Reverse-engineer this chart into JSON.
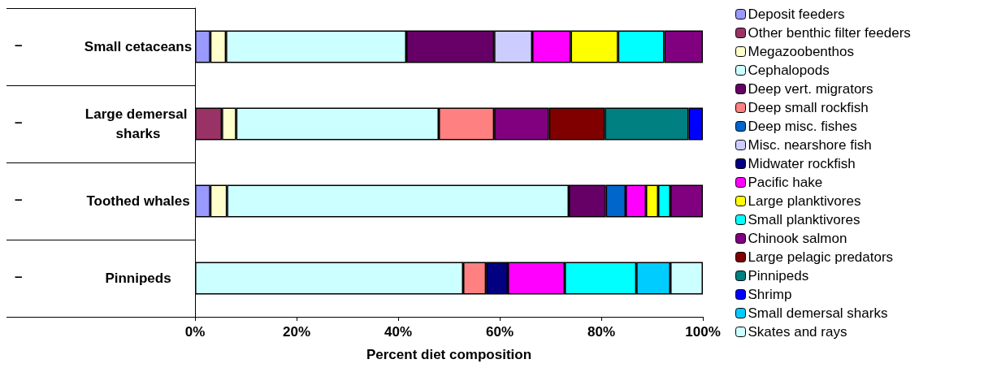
{
  "chart_data": {
    "type": "bar",
    "orientation": "horizontal",
    "stacked": true,
    "xlabel": "Percent diet composition",
    "categories": [
      "Small cetaceans",
      "Large demersal sharks",
      "Toothed whales",
      "Pinnipeds"
    ],
    "xlim": [
      0,
      100
    ],
    "xticks": [
      {
        "value": 0,
        "label": "0%"
      },
      {
        "value": 20,
        "label": "20%"
      },
      {
        "value": 40,
        "label": "40%"
      },
      {
        "value": 60,
        "label": "60%"
      },
      {
        "value": 80,
        "label": "80%"
      },
      {
        "value": 100,
        "label": "100%"
      }
    ],
    "grid": false,
    "legend": "right",
    "annotations": [
      "–",
      "–",
      "–",
      "–"
    ],
    "series": [
      {
        "name": "Deposit feeders",
        "color": "#9999ff",
        "values": [
          3.0,
          null,
          3.0,
          null
        ]
      },
      {
        "name": "Other benthic filter feeders",
        "color": "#993366",
        "values": [
          null,
          5.3,
          null,
          null
        ]
      },
      {
        "name": "Megazoobenthos",
        "color": "#ffffcc",
        "values": [
          3.1,
          2.8,
          3.3,
          null
        ]
      },
      {
        "name": "Cephalopods",
        "color": "#ccffff",
        "values": [
          35.5,
          39.9,
          67.3,
          52.8
        ]
      },
      {
        "name": "Deep vert. migrators",
        "color": "#660066",
        "values": [
          17.3,
          null,
          7.3,
          null
        ]
      },
      {
        "name": "Deep small rockfish",
        "color": "#ff8080",
        "values": [
          null,
          10.9,
          null,
          4.5
        ]
      },
      {
        "name": "Deep misc. fishes",
        "color": "#0066cc",
        "values": [
          null,
          null,
          3.9,
          null
        ]
      },
      {
        "name": "Misc. nearshore fish",
        "color": "#ccccff",
        "values": [
          7.5,
          null,
          null,
          null
        ]
      },
      {
        "name": "Midwater rockfish",
        "color": "#000080",
        "values": [
          null,
          null,
          null,
          4.3
        ]
      },
      {
        "name": "Pacific hake",
        "color": "#ff00ff",
        "values": [
          7.6,
          null,
          4.0,
          11.2
        ]
      },
      {
        "name": "Large planktivores",
        "color": "#ffff00",
        "values": [
          9.3,
          null,
          2.4,
          null
        ]
      },
      {
        "name": "Small planktivores",
        "color": "#00ffff",
        "values": [
          9.1,
          null,
          2.4,
          14.1
        ]
      },
      {
        "name": "Chinook salmon",
        "color": "#800080",
        "values": [
          7.6,
          10.8,
          6.4,
          null
        ]
      },
      {
        "name": "Large pelagic predators",
        "color": "#800000",
        "values": [
          null,
          11.0,
          null,
          null
        ]
      },
      {
        "name": "Pinnipeds",
        "color": "#008080",
        "values": [
          null,
          16.5,
          null,
          null
        ]
      },
      {
        "name": "Shrimp",
        "color": "#0000ff",
        "values": [
          null,
          2.8,
          null,
          null
        ]
      },
      {
        "name": "Small demersal sharks",
        "color": "#00ccff",
        "values": [
          null,
          null,
          null,
          6.7
        ]
      },
      {
        "name": "Skates and rays",
        "color": "#ccffff",
        "values": [
          null,
          null,
          null,
          6.4
        ]
      }
    ]
  }
}
